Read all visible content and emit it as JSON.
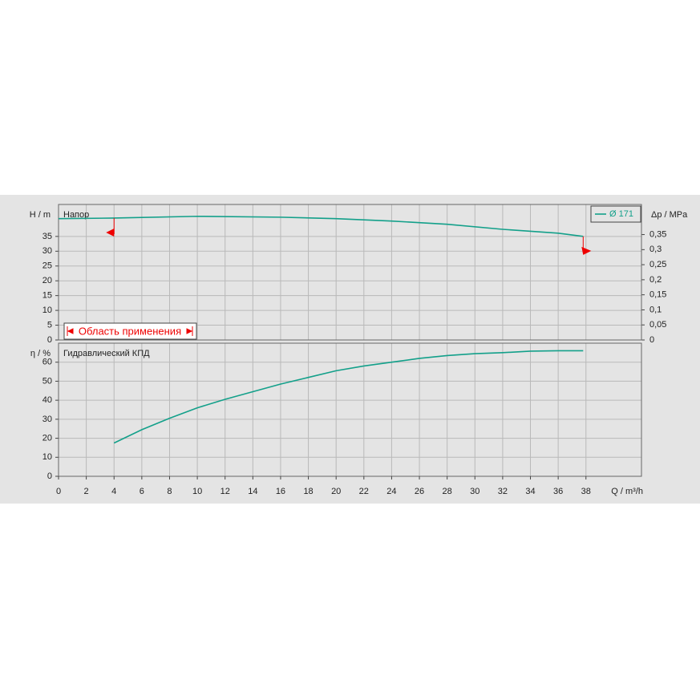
{
  "chart_data": [
    {
      "type": "line",
      "title": "Напор",
      "ylabel": "H / m",
      "y2label": "Δp / MPa",
      "xlim": [
        0,
        42
      ],
      "ylim": [
        0,
        45.8
      ],
      "yticks": [
        0,
        5,
        10,
        15,
        20,
        25,
        30,
        35
      ],
      "y2lim": [
        0,
        0.45
      ],
      "y2ticks": [
        0,
        {
          "value": 0.05,
          "label": "0,05"
        },
        {
          "value": 0.1,
          "label": "0,1"
        },
        {
          "value": 0.15,
          "label": "0,15"
        },
        {
          "value": 0.2,
          "label": "0,2"
        },
        {
          "value": 0.25,
          "label": "0,25"
        },
        {
          "value": 0.3,
          "label": "0,3"
        },
        {
          "value": 0.35,
          "label": "0,35"
        }
      ],
      "grid": true,
      "legend": "upper right",
      "x": [
        0,
        4,
        10,
        16,
        20,
        24,
        28,
        32,
        36,
        37.8
      ],
      "series": [
        {
          "name": "Ø 171",
          "color": "#13a08a",
          "values": [
            41,
            41.2,
            41.8,
            41.5,
            41,
            40.2,
            39.1,
            37.4,
            36.1,
            35
          ]
        }
      ],
      "operating_range": {
        "label": "Область применения",
        "x": [
          4,
          37.8
        ]
      }
    },
    {
      "type": "line",
      "title": "Гидравлический КПД",
      "ylabel": "η / %",
      "xlabel": "Q / m³/h",
      "xlim": [
        0,
        42
      ],
      "xticks": [
        0,
        2,
        4,
        6,
        8,
        10,
        12,
        14,
        16,
        18,
        20,
        22,
        24,
        26,
        28,
        30,
        32,
        34,
        36,
        38
      ],
      "ylim": [
        0,
        70
      ],
      "yticks": [
        0,
        10,
        20,
        30,
        40,
        50,
        60
      ],
      "grid": true,
      "x": [
        4,
        6,
        8,
        10,
        12,
        14,
        16,
        18,
        20,
        22,
        24,
        26,
        28,
        30,
        32,
        34,
        36,
        37.8
      ],
      "series": [
        {
          "name": "Гидравлический КПД",
          "color": "#13a08a",
          "values": [
            17.5,
            24.5,
            30.5,
            36,
            40.5,
            44.5,
            48.5,
            52,
            55.5,
            58,
            60,
            62,
            63.5,
            64.5,
            65,
            65.8,
            66,
            66
          ]
        }
      ]
    }
  ]
}
